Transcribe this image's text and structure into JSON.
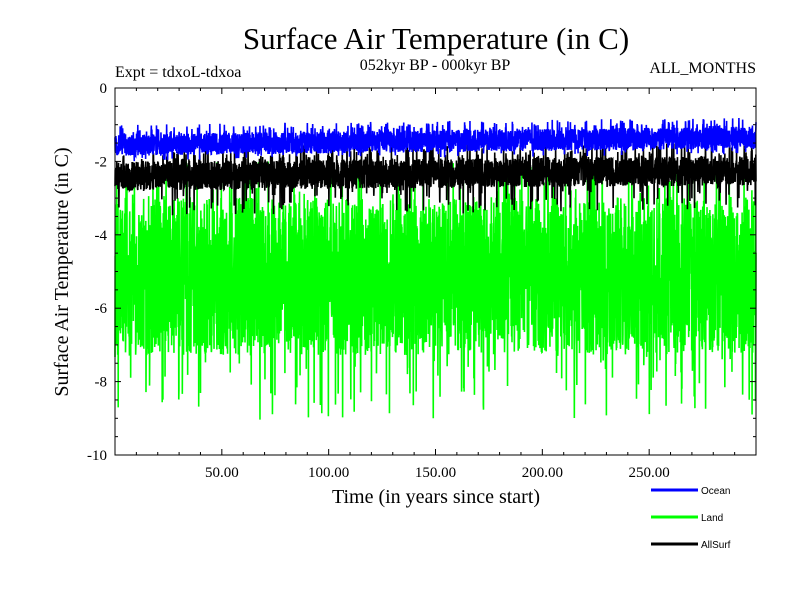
{
  "chart_data": {
    "type": "line",
    "title": "Surface Air Temperature (in C)",
    "subtitle_left": "Expt = tdxoL-tdxoa",
    "subtitle_center": "052kyr BP - 000kyr BP",
    "subtitle_right": "ALL_MONTHS",
    "xlabel": "Time (in years since start)",
    "ylabel": "Surface Air Temperature (in C)",
    "xlim": [
      0,
      300
    ],
    "ylim": [
      -10,
      0
    ],
    "x_ticks": [
      {
        "value": 50,
        "label": "50.00"
      },
      {
        "value": 100,
        "label": "100.00"
      },
      {
        "value": 150,
        "label": "150.00"
      },
      {
        "value": 200,
        "label": "200.00"
      },
      {
        "value": 250,
        "label": "250.00"
      }
    ],
    "y_ticks": [
      {
        "value": 0,
        "label": "0"
      },
      {
        "value": -2,
        "label": "-2"
      },
      {
        "value": -4,
        "label": "-4"
      },
      {
        "value": -6,
        "label": "-6"
      },
      {
        "value": -8,
        "label": "-8"
      },
      {
        "value": -10,
        "label": "-10"
      }
    ],
    "grid": false,
    "legend_position": "bottom-right, below plot",
    "series": [
      {
        "name": "Ocean",
        "color": "#0000ff",
        "mean": -1.6,
        "upper_envelope": -1.0,
        "lower_envelope": -2.0,
        "typical_upper": -1.25,
        "typical_lower": -1.85
      },
      {
        "name": "Land",
        "color": "#00ff00",
        "mean": -5.0,
        "upper_envelope": -2.0,
        "lower_envelope": -9.1,
        "typical_upper": -3.0,
        "typical_lower": -7.3
      },
      {
        "name": "AllSurf",
        "color": "#000000",
        "mean": -2.3,
        "upper_envelope": -1.6,
        "lower_envelope": -3.5,
        "typical_upper": -2.0,
        "typical_lower": -2.8
      }
    ]
  }
}
